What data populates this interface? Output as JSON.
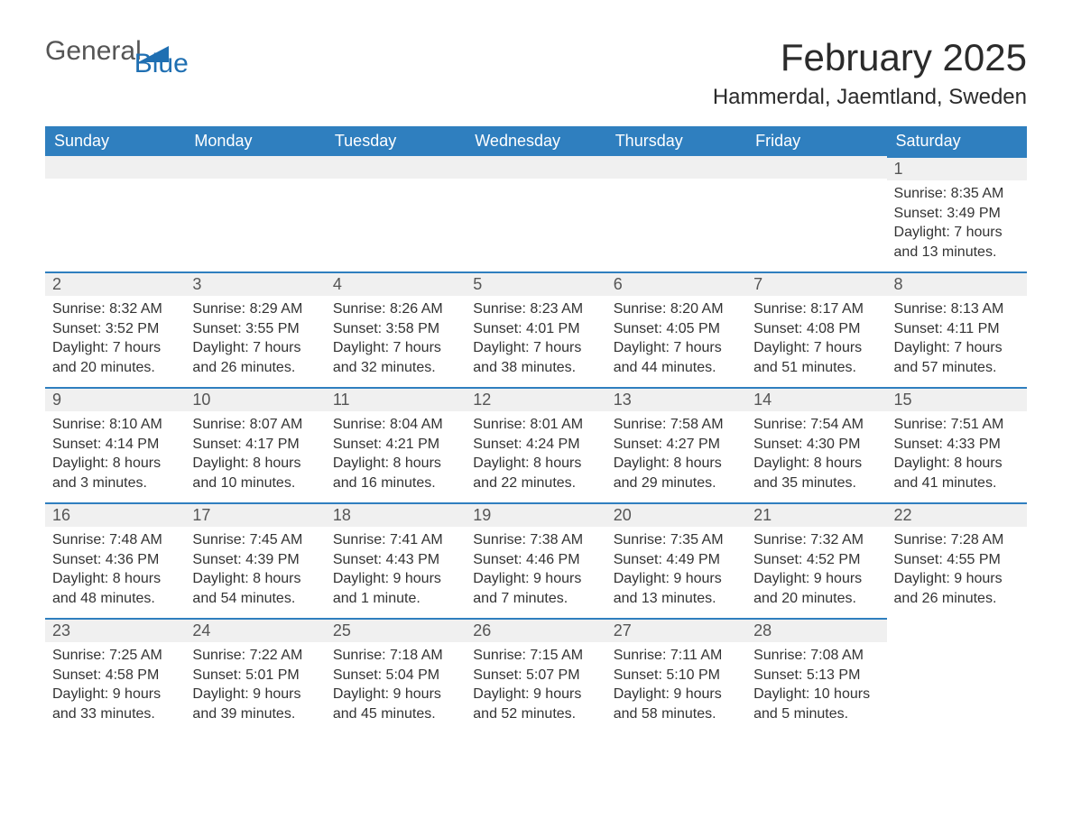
{
  "logo": {
    "text1": "General",
    "text2": "Blue",
    "accent_color": "#1f6fb2"
  },
  "title": "February 2025",
  "location": "Hammerdal, Jaemtland, Sweden",
  "colors": {
    "header_bg": "#2f7fbf",
    "header_fg": "#ffffff",
    "daynum_bg": "#f0f0f0",
    "day_border": "#2f7fbf",
    "text": "#333333"
  },
  "weekdays": [
    "Sunday",
    "Monday",
    "Tuesday",
    "Wednesday",
    "Thursday",
    "Friday",
    "Saturday"
  ],
  "weeks": [
    [
      null,
      null,
      null,
      null,
      null,
      null,
      {
        "n": "1",
        "sunrise": "Sunrise: 8:35 AM",
        "sunset": "Sunset: 3:49 PM",
        "daylight": "Daylight: 7 hours and 13 minutes."
      }
    ],
    [
      {
        "n": "2",
        "sunrise": "Sunrise: 8:32 AM",
        "sunset": "Sunset: 3:52 PM",
        "daylight": "Daylight: 7 hours and 20 minutes."
      },
      {
        "n": "3",
        "sunrise": "Sunrise: 8:29 AM",
        "sunset": "Sunset: 3:55 PM",
        "daylight": "Daylight: 7 hours and 26 minutes."
      },
      {
        "n": "4",
        "sunrise": "Sunrise: 8:26 AM",
        "sunset": "Sunset: 3:58 PM",
        "daylight": "Daylight: 7 hours and 32 minutes."
      },
      {
        "n": "5",
        "sunrise": "Sunrise: 8:23 AM",
        "sunset": "Sunset: 4:01 PM",
        "daylight": "Daylight: 7 hours and 38 minutes."
      },
      {
        "n": "6",
        "sunrise": "Sunrise: 8:20 AM",
        "sunset": "Sunset: 4:05 PM",
        "daylight": "Daylight: 7 hours and 44 minutes."
      },
      {
        "n": "7",
        "sunrise": "Sunrise: 8:17 AM",
        "sunset": "Sunset: 4:08 PM",
        "daylight": "Daylight: 7 hours and 51 minutes."
      },
      {
        "n": "8",
        "sunrise": "Sunrise: 8:13 AM",
        "sunset": "Sunset: 4:11 PM",
        "daylight": "Daylight: 7 hours and 57 minutes."
      }
    ],
    [
      {
        "n": "9",
        "sunrise": "Sunrise: 8:10 AM",
        "sunset": "Sunset: 4:14 PM",
        "daylight": "Daylight: 8 hours and 3 minutes."
      },
      {
        "n": "10",
        "sunrise": "Sunrise: 8:07 AM",
        "sunset": "Sunset: 4:17 PM",
        "daylight": "Daylight: 8 hours and 10 minutes."
      },
      {
        "n": "11",
        "sunrise": "Sunrise: 8:04 AM",
        "sunset": "Sunset: 4:21 PM",
        "daylight": "Daylight: 8 hours and 16 minutes."
      },
      {
        "n": "12",
        "sunrise": "Sunrise: 8:01 AM",
        "sunset": "Sunset: 4:24 PM",
        "daylight": "Daylight: 8 hours and 22 minutes."
      },
      {
        "n": "13",
        "sunrise": "Sunrise: 7:58 AM",
        "sunset": "Sunset: 4:27 PM",
        "daylight": "Daylight: 8 hours and 29 minutes."
      },
      {
        "n": "14",
        "sunrise": "Sunrise: 7:54 AM",
        "sunset": "Sunset: 4:30 PM",
        "daylight": "Daylight: 8 hours and 35 minutes."
      },
      {
        "n": "15",
        "sunrise": "Sunrise: 7:51 AM",
        "sunset": "Sunset: 4:33 PM",
        "daylight": "Daylight: 8 hours and 41 minutes."
      }
    ],
    [
      {
        "n": "16",
        "sunrise": "Sunrise: 7:48 AM",
        "sunset": "Sunset: 4:36 PM",
        "daylight": "Daylight: 8 hours and 48 minutes."
      },
      {
        "n": "17",
        "sunrise": "Sunrise: 7:45 AM",
        "sunset": "Sunset: 4:39 PM",
        "daylight": "Daylight: 8 hours and 54 minutes."
      },
      {
        "n": "18",
        "sunrise": "Sunrise: 7:41 AM",
        "sunset": "Sunset: 4:43 PM",
        "daylight": "Daylight: 9 hours and 1 minute."
      },
      {
        "n": "19",
        "sunrise": "Sunrise: 7:38 AM",
        "sunset": "Sunset: 4:46 PM",
        "daylight": "Daylight: 9 hours and 7 minutes."
      },
      {
        "n": "20",
        "sunrise": "Sunrise: 7:35 AM",
        "sunset": "Sunset: 4:49 PM",
        "daylight": "Daylight: 9 hours and 13 minutes."
      },
      {
        "n": "21",
        "sunrise": "Sunrise: 7:32 AM",
        "sunset": "Sunset: 4:52 PM",
        "daylight": "Daylight: 9 hours and 20 minutes."
      },
      {
        "n": "22",
        "sunrise": "Sunrise: 7:28 AM",
        "sunset": "Sunset: 4:55 PM",
        "daylight": "Daylight: 9 hours and 26 minutes."
      }
    ],
    [
      {
        "n": "23",
        "sunrise": "Sunrise: 7:25 AM",
        "sunset": "Sunset: 4:58 PM",
        "daylight": "Daylight: 9 hours and 33 minutes."
      },
      {
        "n": "24",
        "sunrise": "Sunrise: 7:22 AM",
        "sunset": "Sunset: 5:01 PM",
        "daylight": "Daylight: 9 hours and 39 minutes."
      },
      {
        "n": "25",
        "sunrise": "Sunrise: 7:18 AM",
        "sunset": "Sunset: 5:04 PM",
        "daylight": "Daylight: 9 hours and 45 minutes."
      },
      {
        "n": "26",
        "sunrise": "Sunrise: 7:15 AM",
        "sunset": "Sunset: 5:07 PM",
        "daylight": "Daylight: 9 hours and 52 minutes."
      },
      {
        "n": "27",
        "sunrise": "Sunrise: 7:11 AM",
        "sunset": "Sunset: 5:10 PM",
        "daylight": "Daylight: 9 hours and 58 minutes."
      },
      {
        "n": "28",
        "sunrise": "Sunrise: 7:08 AM",
        "sunset": "Sunset: 5:13 PM",
        "daylight": "Daylight: 10 hours and 5 minutes."
      },
      null
    ]
  ]
}
